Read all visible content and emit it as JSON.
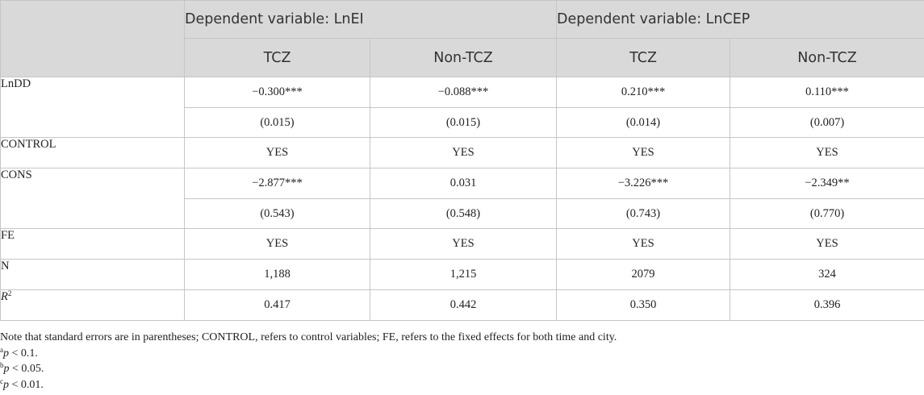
{
  "header": {
    "dep1": "Dependent variable: LnEI",
    "dep2": "Dependent variable: LnCEP",
    "cols": [
      "TCZ",
      "Non-TCZ",
      "TCZ",
      "Non-TCZ"
    ]
  },
  "rows": {
    "lndd": {
      "label": "LnDD",
      "coef": [
        "−0.300***",
        "−0.088***",
        "0.210***",
        "0.110***"
      ],
      "se": [
        "(0.015)",
        "(0.015)",
        "(0.014)",
        "(0.007)"
      ]
    },
    "control": {
      "label": "CONTROL",
      "vals": [
        "YES",
        "YES",
        "YES",
        "YES"
      ]
    },
    "cons": {
      "label": "CONS",
      "coef": [
        "−2.877***",
        "0.031",
        "−3.226***",
        "−2.349**"
      ],
      "se": [
        "(0.543)",
        "(0.548)",
        "(0.743)",
        "(0.770)"
      ]
    },
    "fe": {
      "label": "FE",
      "vals": [
        "YES",
        "YES",
        "YES",
        "YES"
      ]
    },
    "n": {
      "label": "N",
      "vals": [
        "1,188",
        "1,215",
        "2079",
        "324"
      ]
    },
    "r2": {
      "label_base": "R",
      "label_sup": "2",
      "vals": [
        "0.417",
        "0.442",
        "0.350",
        "0.396"
      ]
    }
  },
  "notes": {
    "main": "Note that standard errors are in parentheses; CONTROL, refers to control variables; FE, refers to the fixed effects for both time and city.",
    "fn": [
      {
        "mark": "a",
        "p": "p",
        "rest": " < 0.1."
      },
      {
        "mark": "b",
        "p": "p",
        "rest": " < 0.05."
      },
      {
        "mark": "c",
        "p": "p",
        "rest": " < 0.01."
      }
    ]
  }
}
